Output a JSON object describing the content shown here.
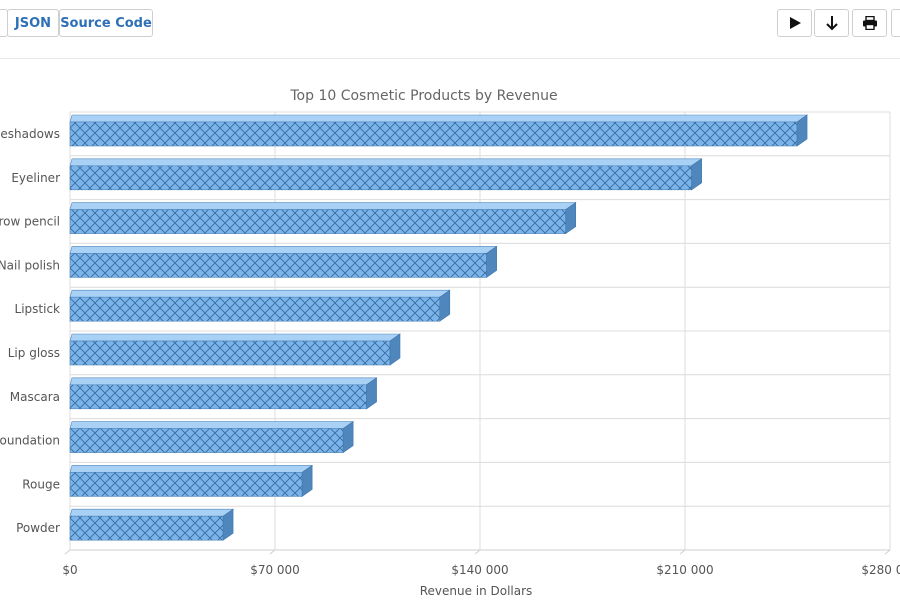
{
  "toolbar": {
    "json_label": "JSON",
    "source_label": "Source Code",
    "play_icon": "play-icon",
    "download_icon": "arrow-down-icon",
    "print_icon": "printer-icon"
  },
  "colors": {
    "bar_fill": "#7bb4ea",
    "bar_dark": "#4f87bd",
    "hatch": "#2f5f8f",
    "grid": "#dcdcdc",
    "title": "#666666",
    "label": "#555555",
    "link": "#2e70b8"
  },
  "chart_data": {
    "type": "bar",
    "orientation": "horizontal",
    "title": "Top 10 Cosmetic Products by Revenue",
    "xlabel": "Revenue in Dollars",
    "ylabel": "",
    "categories": [
      "Eyeshadows",
      "Eyeliner",
      "Eyebrow pencil",
      "Nail polish",
      "Lipstick",
      "Lip gloss",
      "Mascara",
      "Foundation",
      "Rouge",
      "Powder"
    ],
    "values": [
      251000,
      215000,
      172000,
      145000,
      129000,
      112000,
      104000,
      96000,
      82000,
      55000
    ],
    "xlim": [
      0,
      280000
    ],
    "x_ticks": [
      0,
      70000,
      140000,
      210000,
      280000
    ],
    "x_tick_labels": [
      "$0",
      "$70 000",
      "$140 000",
      "$210 000",
      "$280 000"
    ],
    "grid": true,
    "legend": "none",
    "bar_style": "3d cross-hatched"
  }
}
